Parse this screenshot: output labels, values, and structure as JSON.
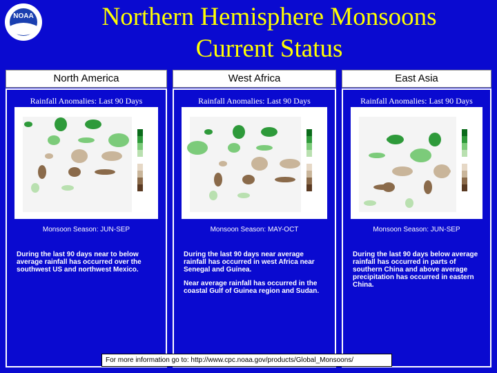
{
  "header": {
    "logo_text": "NOAA",
    "title_lines": [
      "Northern Hemisphere Monsoons",
      "Current Status"
    ]
  },
  "panels": [
    {
      "region": "North America",
      "subtitle": "Rainfall Anomalies: Last 90 Days",
      "season": "Monsoon Season: JUN-SEP",
      "paragraphs": [
        "During the last 90 days near to below average rainfall has occurred over the southwest US and northwest Mexico."
      ]
    },
    {
      "region": "West Africa",
      "subtitle": "Rainfall Anomalies: Last 90 Days",
      "season": "Monsoon Season: MAY-OCT",
      "paragraphs": [
        "During the last 90 days near average rainfall has occurred in west Africa near Senegal and Guinea.",
        "Near average rainfall has occurred in the coastal Gulf of Guinea region and Sudan."
      ]
    },
    {
      "region": "East Asia",
      "subtitle": "Rainfall Anomalies: Last 90 Days",
      "season": "Monsoon Season: JUN-SEP",
      "paragraphs": [
        "During the last 90 days below average rainfall has occurred in parts of southern China and above average precipitation has occurred in eastern China."
      ]
    }
  ],
  "footer": "For more information go to: http://www.cpc.noaa.gov/products/Global_Monsoons/"
}
